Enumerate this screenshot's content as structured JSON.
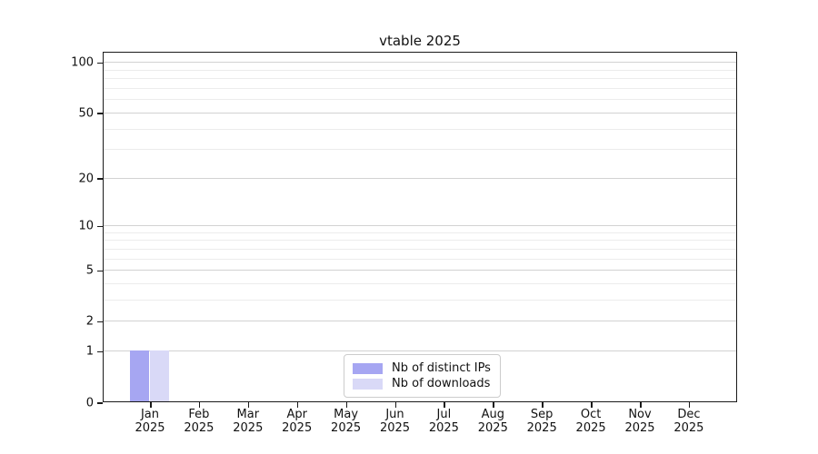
{
  "chart_data": {
    "type": "bar",
    "title": "vtable 2025",
    "categories": [
      "Jan",
      "Feb",
      "Mar",
      "Apr",
      "May",
      "Jun",
      "Jul",
      "Aug",
      "Sep",
      "Oct",
      "Nov",
      "Dec"
    ],
    "year_label": "2025",
    "series": [
      {
        "name": "Nb of distinct IPs",
        "color": "#a6a6f2",
        "values": [
          1,
          0,
          0,
          0,
          0,
          0,
          0,
          0,
          0,
          0,
          0,
          0
        ]
      },
      {
        "name": "Nb of downloads",
        "color": "#d9d9f7",
        "values": [
          1,
          0,
          0,
          0,
          0,
          0,
          0,
          0,
          0,
          0,
          0,
          0
        ]
      }
    ],
    "y_axis": {
      "scale": "log-like",
      "ticks": [
        0,
        1,
        2,
        5,
        10,
        20,
        50,
        100
      ],
      "minor_ticks": [
        3,
        4,
        6,
        7,
        8,
        9,
        30,
        40,
        60,
        70,
        80,
        90
      ],
      "range": [
        0,
        100
      ]
    },
    "legend": {
      "position": "bottom-center"
    },
    "grid": true
  }
}
